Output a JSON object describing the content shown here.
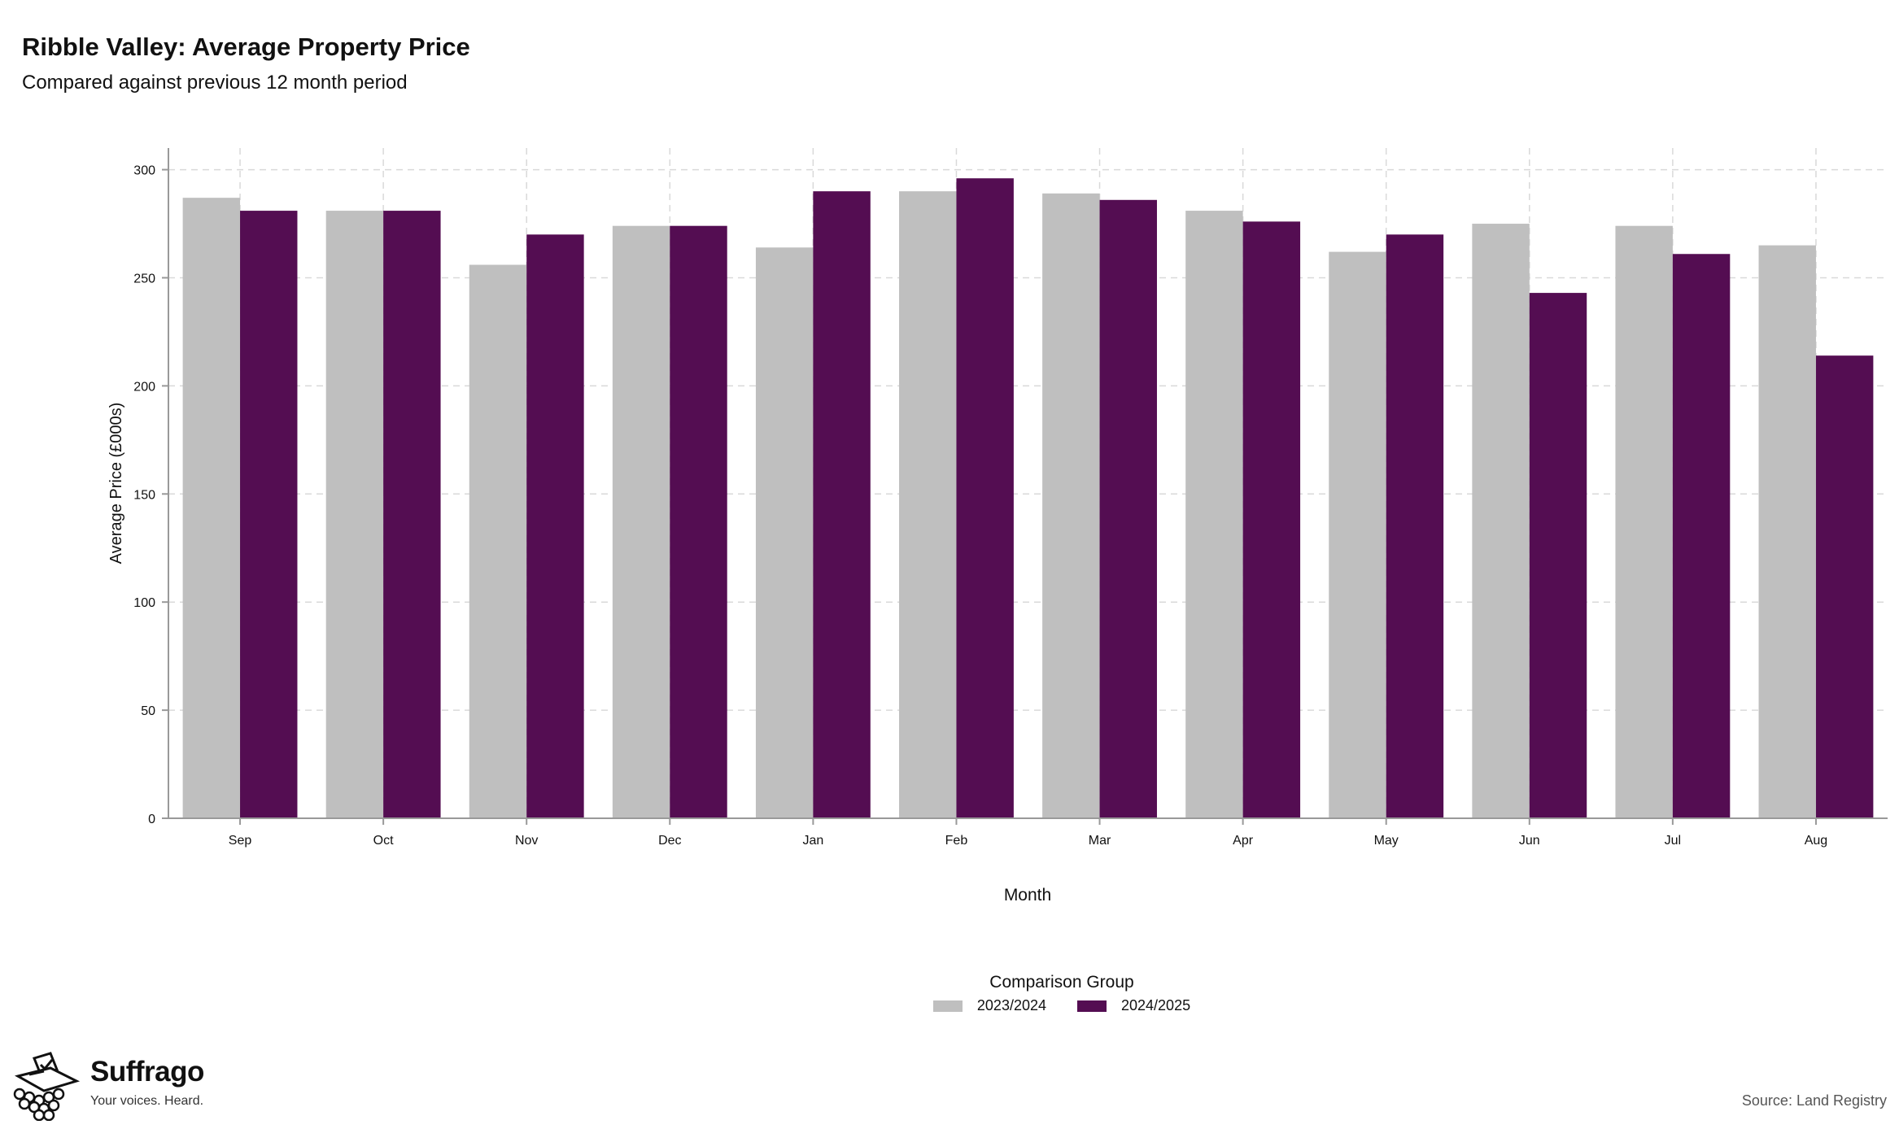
{
  "title": "Ribble Valley: Average Property Price",
  "subtitle": "Compared against previous 12 month period",
  "source": "Source: Land Registry",
  "brand": {
    "name": "Suffrago",
    "tagline": "Your voices. Heard."
  },
  "legend": {
    "title": "Comparison Group"
  },
  "chart_data": {
    "type": "bar",
    "xlabel": "Month",
    "ylabel": "Average Price (£000s)",
    "ylim": [
      0,
      310
    ],
    "yticks": [
      0,
      50,
      100,
      150,
      200,
      250,
      300
    ],
    "categories": [
      "Sep",
      "Oct",
      "Nov",
      "Dec",
      "Jan",
      "Feb",
      "Mar",
      "Apr",
      "May",
      "Jun",
      "Jul",
      "Aug"
    ],
    "series": [
      {
        "name": "2023/2024",
        "color": "#bfbfbf",
        "values": [
          287,
          281,
          256,
          274,
          264,
          290,
          289,
          281,
          262,
          275,
          274,
          265
        ]
      },
      {
        "name": "2024/2025",
        "color": "#540d52",
        "values": [
          281,
          281,
          270,
          274,
          290,
          296,
          286,
          276,
          270,
          243,
          261,
          214
        ]
      }
    ],
    "grid": true,
    "legend_position": "bottom"
  }
}
